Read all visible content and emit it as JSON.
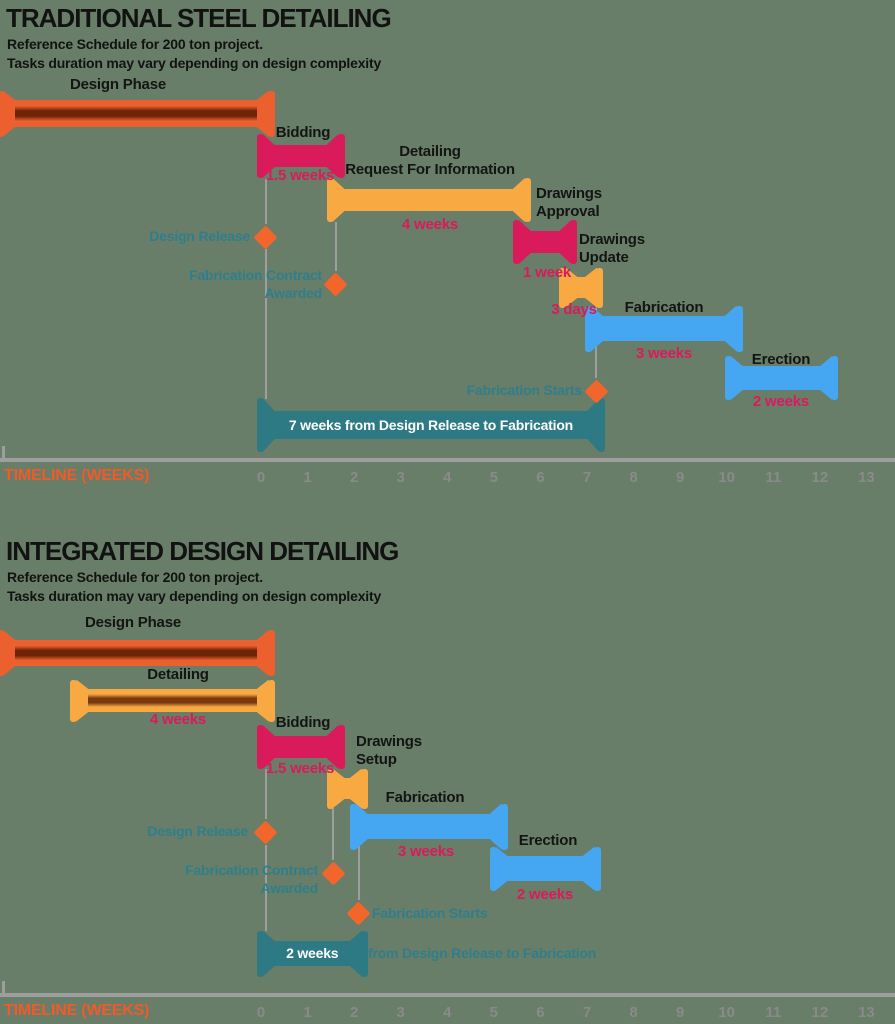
{
  "colors": {
    "background": "#687E68",
    "orange": "#EC602F",
    "orange_dark": "#6E2406",
    "yellow": "#F9A942",
    "yellow_dark": "#7A3A10",
    "pink": "#D91B5C",
    "blue": "#45A7F2",
    "teal": "#2E7A84",
    "teal_text": "#2F7E8C",
    "diamond_orange": "#F2652B",
    "axis_gray": "#9E9E9E",
    "tick_gray": "#8A8A8A",
    "timeline_orange": "#F15A29",
    "text_black": "#121212",
    "banner_text_white": "#FFFFFF"
  },
  "chart_data": [
    {
      "type": "gantt",
      "title": "TRADITIONAL STEEL DETAILING",
      "subtitle1": "Reference Schedule for 200 ton project.",
      "subtitle2": "Tasks duration may vary depending on design complexity",
      "axis_label": "TIMELINE (WEEKS)",
      "xticks": [
        0,
        1,
        2,
        3,
        4,
        5,
        6,
        7,
        8,
        9,
        10,
        11,
        12,
        13
      ],
      "xlim": [
        0,
        13
      ],
      "tasks": [
        {
          "name": "Design Phase",
          "start_week": -5.7,
          "end_week": 0.1,
          "duration_label": "",
          "color": "orange_striped"
        },
        {
          "name": "Bidding",
          "start_week": 0.1,
          "end_week": 1.6,
          "duration_label": "1.5 weeks",
          "color": "pink"
        },
        {
          "name": "Detailing\nRequest For Information",
          "start_week": 1.6,
          "end_week": 5.6,
          "duration_label": "4 weeks",
          "color": "yellow"
        },
        {
          "name": "Drawings\nApproval",
          "start_week": 5.6,
          "end_week": 6.6,
          "duration_label": "1 week",
          "color": "pink"
        },
        {
          "name": "Drawings\nUpdate",
          "start_week": 6.6,
          "end_week": 7.15,
          "duration_label": "3 days",
          "color": "yellow"
        },
        {
          "name": "Fabrication",
          "start_week": 7.15,
          "end_week": 10.15,
          "duration_label": "3 weeks",
          "color": "blue"
        },
        {
          "name": "Erection",
          "start_week": 10.15,
          "end_week": 12.2,
          "duration_label": "2 weeks",
          "color": "blue"
        }
      ],
      "milestones": [
        {
          "name": "Design Release",
          "week": 0.1,
          "label_side": "left"
        },
        {
          "name": "Fabrication Contract\nAwarded",
          "week": 1.6,
          "label_side": "left"
        },
        {
          "name": "Fabrication Starts",
          "week": 7.2,
          "label_side": "left"
        }
      ],
      "callout": {
        "bar_text": "7 weeks from Design Release to Fabrication",
        "side_text": "",
        "start_week": 0.1,
        "end_week": 7.2
      }
    },
    {
      "type": "gantt",
      "title": "INTEGRATED DESIGN DETAILING",
      "subtitle1": "Reference Schedule for 200 ton project.",
      "subtitle2": "Tasks duration may vary depending on design complexity",
      "axis_label": "TIMELINE (WEEKS)",
      "xticks": [
        0,
        1,
        2,
        3,
        4,
        5,
        6,
        7,
        8,
        9,
        10,
        11,
        12,
        13
      ],
      "xlim": [
        0,
        13
      ],
      "tasks": [
        {
          "name": "Design Phase",
          "start_week": -5.7,
          "end_week": 0.1,
          "duration_label": "",
          "color": "orange_striped"
        },
        {
          "name": "Detailing",
          "start_week": -3.9,
          "end_week": 0.1,
          "duration_label": "4 weeks",
          "color": "yellow_striped"
        },
        {
          "name": "Bidding",
          "start_week": 0.1,
          "end_week": 1.6,
          "duration_label": "1.5 weeks",
          "color": "pink"
        },
        {
          "name": "Drawings\nSetup",
          "start_week": 1.6,
          "end_week": 2.1,
          "duration_label": "",
          "color": "yellow"
        },
        {
          "name": "Fabrication",
          "start_week": 2.1,
          "end_week": 5.1,
          "duration_label": "3 weeks",
          "color": "blue"
        },
        {
          "name": "Erection",
          "start_week": 5.1,
          "end_week": 7.1,
          "duration_label": "2 weeks",
          "color": "blue"
        }
      ],
      "milestones": [
        {
          "name": "Design Release",
          "week": 0.1,
          "label_side": "left"
        },
        {
          "name": "Fabrication Contract\nAwarded",
          "week": 1.55,
          "label_side": "left"
        },
        {
          "name": "Fabrication Starts",
          "week": 2.1,
          "label_side": "right"
        }
      ],
      "callout": {
        "bar_text": "2 weeks",
        "side_text": "from Design Release to Fabrication",
        "start_week": 0.1,
        "end_week": 2.1
      }
    }
  ]
}
